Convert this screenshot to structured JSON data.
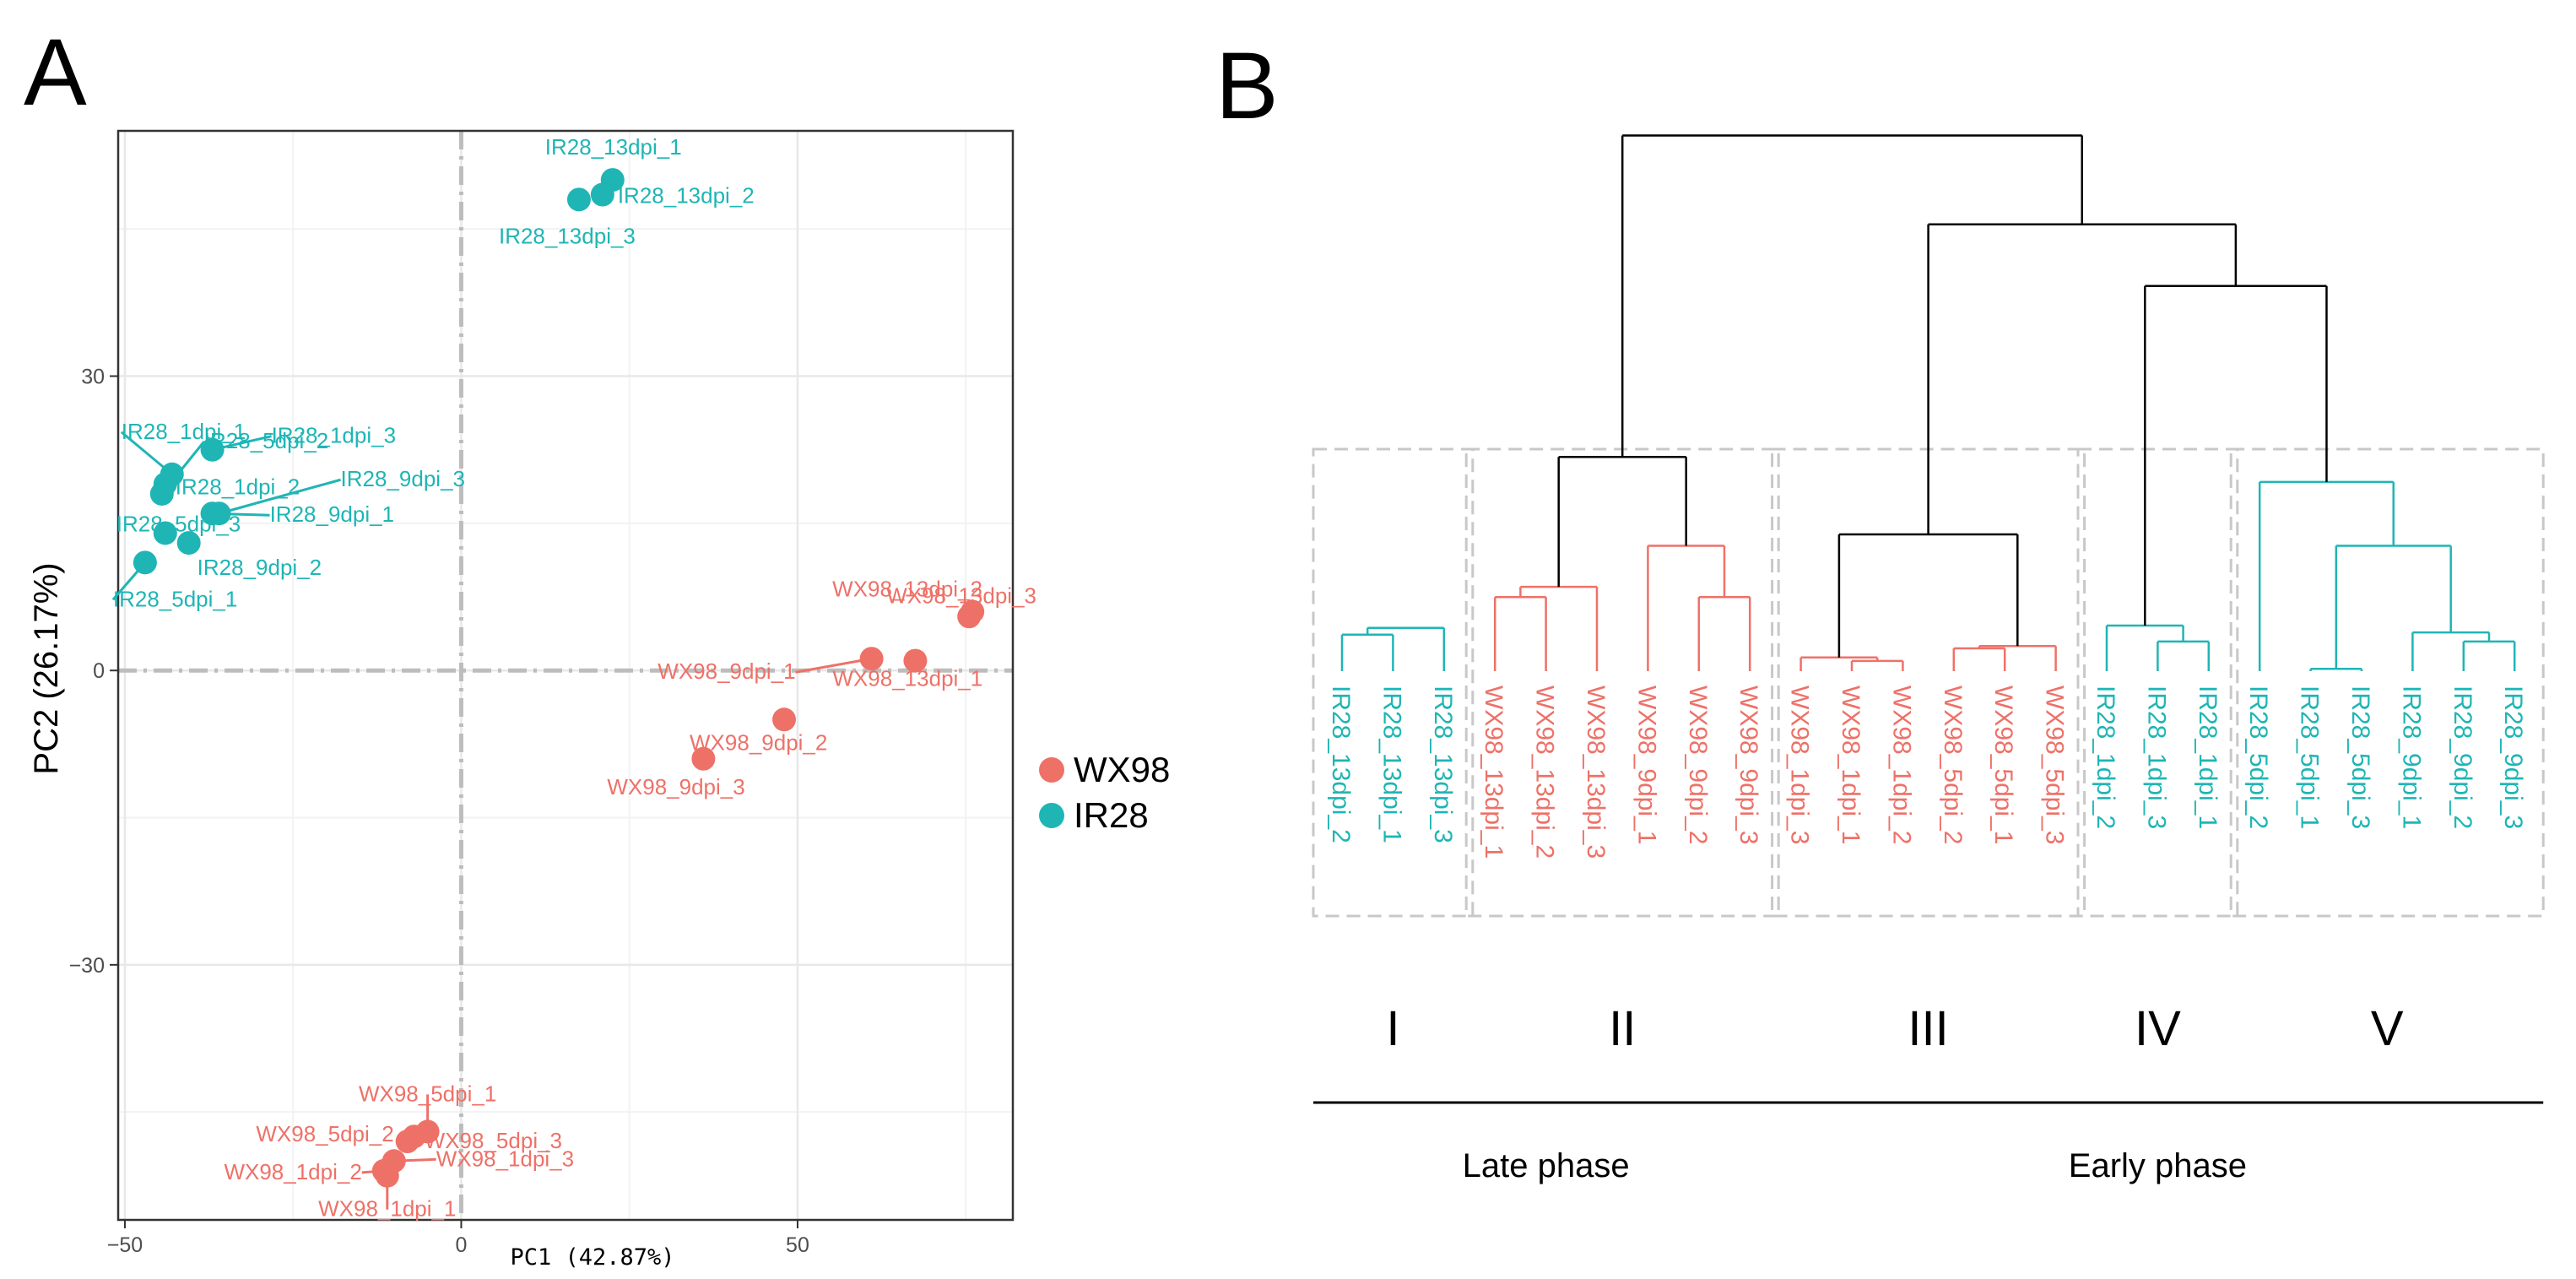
{
  "panels": {
    "a_label": "A",
    "b_label": "B"
  },
  "colors": {
    "WX98": "#EE7168",
    "IR28": "#1FB5B5",
    "tree": "#000000",
    "grid": "#E8E8E8",
    "box": "#C8C8C8"
  },
  "chart_data": [
    {
      "type": "scatter",
      "title": "",
      "xlabel": "PC1 (42.87%)",
      "ylabel": "PC2 (26.17%)",
      "xlim": [
        -51,
        82
      ],
      "ylim": [
        -56,
        55
      ],
      "xticks": [
        -50,
        0,
        50
      ],
      "yticks": [
        -30,
        0,
        30
      ],
      "grid": true,
      "reference_lines": {
        "x": 0,
        "y": 0,
        "style": "dash-dot"
      },
      "legend": {
        "position": "right",
        "entries": [
          "WX98",
          "IR28"
        ]
      },
      "series": [
        {
          "name": "WX98",
          "points": [
            {
              "label": "WX98_1dpi_1",
              "x": -11,
              "y": -51.5
            },
            {
              "label": "WX98_1dpi_2",
              "x": -11.5,
              "y": -51
            },
            {
              "label": "WX98_1dpi_3",
              "x": -10,
              "y": -50
            },
            {
              "label": "WX98_5dpi_1",
              "x": -5,
              "y": -47
            },
            {
              "label": "WX98_5dpi_2",
              "x": -8,
              "y": -48
            },
            {
              "label": "WX98_5dpi_3",
              "x": -7,
              "y": -47.5
            },
            {
              "label": "WX98_9dpi_1",
              "x": 61,
              "y": 1.2
            },
            {
              "label": "WX98_9dpi_2",
              "x": 48,
              "y": -5
            },
            {
              "label": "WX98_9dpi_3",
              "x": 36,
              "y": -9
            },
            {
              "label": "WX98_13dpi_1",
              "x": 67.5,
              "y": 1
            },
            {
              "label": "WX98_13dpi_2",
              "x": 76,
              "y": 6
            },
            {
              "label": "WX98_13dpi_3",
              "x": 75.5,
              "y": 5.5
            }
          ]
        },
        {
          "name": "IR28",
          "points": [
            {
              "label": "IR28_1dpi_1",
              "x": -43,
              "y": 20
            },
            {
              "label": "IR28_1dpi_2",
              "x": -44,
              "y": 19
            },
            {
              "label": "IR28_1dpi_3",
              "x": -37,
              "y": 22.5
            },
            {
              "label": "IR28_5dpi_1",
              "x": -47,
              "y": 11
            },
            {
              "label": "IR28_5dpi_2",
              "x": -44.5,
              "y": 18
            },
            {
              "label": "IR28_5dpi_3",
              "x": -44,
              "y": 14
            },
            {
              "label": "IR28_9dpi_1",
              "x": -37,
              "y": 16
            },
            {
              "label": "IR28_9dpi_2",
              "x": -40.5,
              "y": 13
            },
            {
              "label": "IR28_9dpi_3",
              "x": -36,
              "y": 16
            },
            {
              "label": "IR28_13dpi_1",
              "x": 22.5,
              "y": 50
            },
            {
              "label": "IR28_13dpi_2",
              "x": 21,
              "y": 48.5
            },
            {
              "label": "IR28_13dpi_3",
              "x": 17.5,
              "y": 48
            }
          ]
        }
      ]
    },
    {
      "type": "dendrogram",
      "title": "",
      "leaves": [
        {
          "label": "IR28_13dpi_2",
          "group": "IR28"
        },
        {
          "label": "IR28_13dpi_1",
          "group": "IR28"
        },
        {
          "label": "IR28_13dpi_3",
          "group": "IR28"
        },
        {
          "label": "WX98_13dpi_1",
          "group": "WX98"
        },
        {
          "label": "WX98_13dpi_2",
          "group": "WX98"
        },
        {
          "label": "WX98_13dpi_3",
          "group": "WX98"
        },
        {
          "label": "WX98_9dpi_1",
          "group": "WX98"
        },
        {
          "label": "WX98_9dpi_2",
          "group": "WX98"
        },
        {
          "label": "WX98_9dpi_3",
          "group": "WX98"
        },
        {
          "label": "WX98_1dpi_3",
          "group": "WX98"
        },
        {
          "label": "WX98_1dpi_1",
          "group": "WX98"
        },
        {
          "label": "WX98_1dpi_2",
          "group": "WX98"
        },
        {
          "label": "WX98_5dpi_2",
          "group": "WX98"
        },
        {
          "label": "WX98_5dpi_1",
          "group": "WX98"
        },
        {
          "label": "WX98_5dpi_3",
          "group": "WX98"
        },
        {
          "label": "IR28_1dpi_2",
          "group": "IR28"
        },
        {
          "label": "IR28_1dpi_3",
          "group": "IR28"
        },
        {
          "label": "IR28_1dpi_1",
          "group": "IR28"
        },
        {
          "label": "IR28_5dpi_2",
          "group": "IR28"
        },
        {
          "label": "IR28_5dpi_1",
          "group": "IR28"
        },
        {
          "label": "IR28_5dpi_3",
          "group": "IR28"
        },
        {
          "label": "IR28_9dpi_1",
          "group": "IR28"
        },
        {
          "label": "IR28_9dpi_2",
          "group": "IR28"
        },
        {
          "label": "IR28_9dpi_3",
          "group": "IR28"
        }
      ],
      "merges": [
        {
          "a": 0,
          "b": 1,
          "height": 0.16,
          "group": "IR28"
        },
        {
          "a": 24,
          "b": 2,
          "height": 0.19,
          "group": "IR28"
        },
        {
          "a": 3,
          "b": 4,
          "height": 0.325,
          "group": "WX98"
        },
        {
          "a": 26,
          "b": 5,
          "height": 0.37,
          "group": "WX98"
        },
        {
          "a": 7,
          "b": 8,
          "height": 0.325,
          "group": "WX98"
        },
        {
          "a": 6,
          "b": 28,
          "height": 0.55,
          "group": "WX98"
        },
        {
          "a": 27,
          "b": 29,
          "height": 0.94,
          "group": "tree"
        },
        {
          "a": 10,
          "b": 11,
          "height": 0.045,
          "group": "WX98"
        },
        {
          "a": 9,
          "b": 31,
          "height": 0.06,
          "group": "WX98"
        },
        {
          "a": 12,
          "b": 13,
          "height": 0.1,
          "group": "WX98"
        },
        {
          "a": 33,
          "b": 14,
          "height": 0.11,
          "group": "WX98"
        },
        {
          "a": 32,
          "b": 34,
          "height": 0.6,
          "group": "tree"
        },
        {
          "a": 16,
          "b": 17,
          "height": 0.13,
          "group": "IR28"
        },
        {
          "a": 15,
          "b": 36,
          "height": 0.2,
          "group": "IR28"
        },
        {
          "a": 19,
          "b": 20,
          "height": 0.01,
          "group": "IR28"
        },
        {
          "a": 22,
          "b": 23,
          "height": 0.13,
          "group": "IR28"
        },
        {
          "a": 21,
          "b": 39,
          "height": 0.17,
          "group": "IR28"
        },
        {
          "a": 38,
          "b": 40,
          "height": 0.55,
          "group": "IR28"
        },
        {
          "a": 18,
          "b": 41,
          "height": 0.83,
          "group": "IR28"
        },
        {
          "a": 37,
          "b": 42,
          "height": 1.69,
          "group": "tree"
        },
        {
          "a": 35,
          "b": 43,
          "height": 1.96,
          "group": "tree"
        },
        {
          "a": 30,
          "b": 44,
          "height": 2.35,
          "group": "tree"
        }
      ],
      "clusters": [
        {
          "name": "I",
          "from": 0,
          "to": 2
        },
        {
          "name": "II",
          "from": 3,
          "to": 8
        },
        {
          "name": "III",
          "from": 9,
          "to": 14
        },
        {
          "name": "IV",
          "from": 15,
          "to": 17
        },
        {
          "name": "V",
          "from": 18,
          "to": 23
        }
      ],
      "phases": [
        {
          "name": "Late phase",
          "from": 0,
          "to": 8
        },
        {
          "name": "Early phase",
          "from": 9,
          "to": 23
        }
      ]
    }
  ]
}
